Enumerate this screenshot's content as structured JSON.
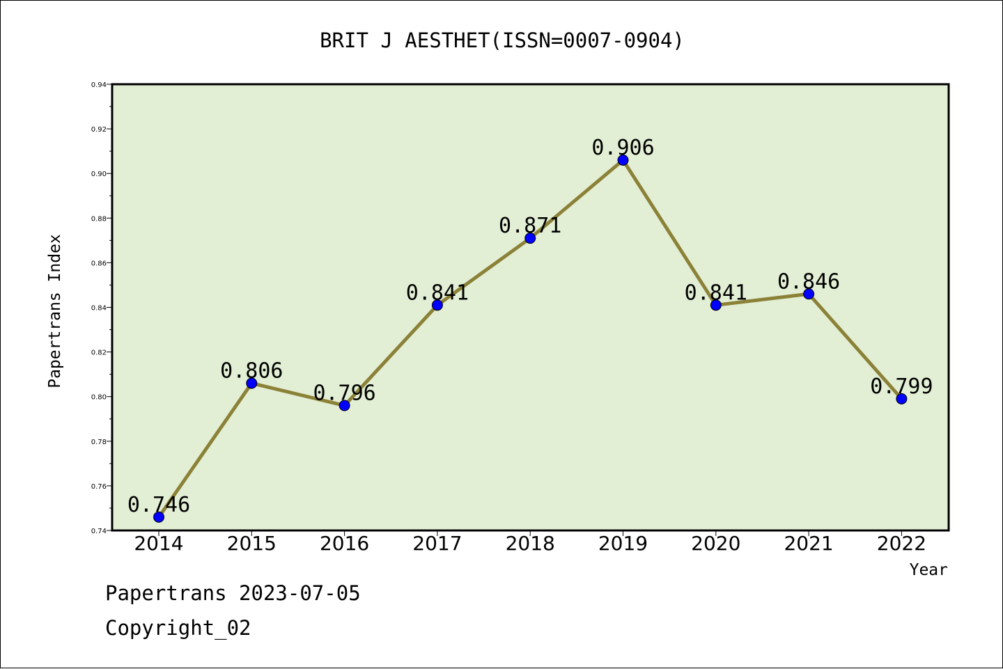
{
  "chart_data": {
    "type": "line",
    "title": "BRIT J AESTHET(ISSN=0007-0904)",
    "xlabel": "Year",
    "ylabel": "Papertrans Index",
    "categories": [
      "2014",
      "2015",
      "2016",
      "2017",
      "2018",
      "2019",
      "2020",
      "2021",
      "2022"
    ],
    "series": [
      {
        "values": [
          0.746,
          0.806,
          0.796,
          0.841,
          0.871,
          0.906,
          0.841,
          0.846,
          0.799
        ]
      }
    ],
    "data_labels": [
      "0.746",
      "0.806",
      "0.796",
      "0.841",
      "0.871",
      "0.906",
      "0.841",
      "0.846",
      "0.799"
    ],
    "ylim": [
      0.74,
      0.94
    ],
    "yticks": [
      "0.74",
      "0.76",
      "0.78",
      "0.80",
      "0.82",
      "0.84",
      "0.86",
      "0.88",
      "0.90",
      "0.92",
      "0.94"
    ],
    "grid": false,
    "legend": "none",
    "colors": {
      "plot_background": "#e2efd5",
      "line": "#8b8137",
      "marker": "#0000ff"
    }
  },
  "footer": {
    "source": "Papertrans 2023-07-05",
    "copyright": "Copyright_02"
  }
}
